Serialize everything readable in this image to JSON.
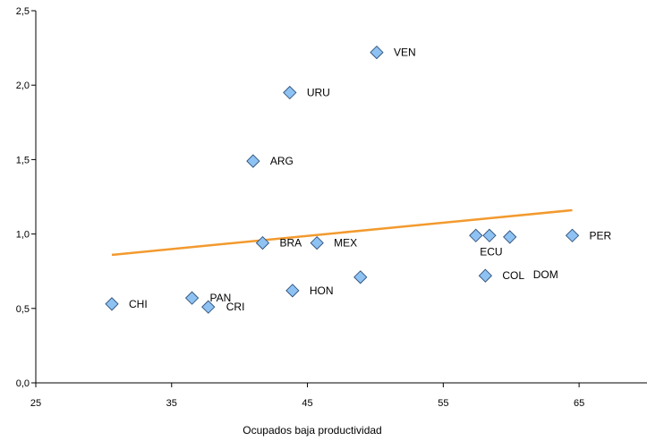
{
  "chart_data": {
    "type": "scatter",
    "title": "",
    "xlabel": "Ocupados  baja productividad",
    "ylabel": "",
    "xlim": [
      25,
      70
    ],
    "ylim": [
      0,
      2.5
    ],
    "xticks": [
      {
        "value": 25,
        "label": "25"
      },
      {
        "value": 35,
        "label": "35"
      },
      {
        "value": 45,
        "label": "45"
      },
      {
        "value": 55,
        "label": "55"
      },
      {
        "value": 65,
        "label": "65"
      }
    ],
    "yticks": [
      {
        "value": 0,
        "label": "0,0"
      },
      {
        "value": 0.5,
        "label": "0,5"
      },
      {
        "value": 1.0,
        "label": "1,0"
      },
      {
        "value": 1.5,
        "label": "1,5"
      },
      {
        "value": 2.0,
        "label": "2,0"
      },
      {
        "value": 2.5,
        "label": "2,5"
      }
    ],
    "grid": false,
    "legend": "none",
    "points": [
      {
        "label": "CHI",
        "x": 30.6,
        "y": 0.53,
        "label_pos": "right"
      },
      {
        "label": "PAN",
        "x": 36.5,
        "y": 0.57,
        "label_pos": "right-tight"
      },
      {
        "label": "CRI",
        "x": 37.7,
        "y": 0.51,
        "label_pos": "right-tight"
      },
      {
        "label": "ARG",
        "x": 41.0,
        "y": 1.49,
        "label_pos": "right"
      },
      {
        "label": "BRA",
        "x": 41.7,
        "y": 0.94,
        "label_pos": "right"
      },
      {
        "label": "URU",
        "x": 43.7,
        "y": 1.95,
        "label_pos": "right"
      },
      {
        "label": "HON",
        "x": 43.9,
        "y": 0.62,
        "label_pos": "right"
      },
      {
        "label": "MEX",
        "x": 45.7,
        "y": 0.94,
        "label_pos": "right"
      },
      {
        "label": "",
        "x": 48.9,
        "y": 0.71,
        "label_pos": "none"
      },
      {
        "label": "VEN",
        "x": 50.1,
        "y": 2.22,
        "label_pos": "right"
      },
      {
        "label": "",
        "x": 57.4,
        "y": 0.99,
        "label_pos": "none"
      },
      {
        "label": "ECU",
        "x": 58.4,
        "y": 0.99,
        "label_pos": "below"
      },
      {
        "label": "COL",
        "x": 58.1,
        "y": 0.72,
        "label_pos": "right"
      },
      {
        "label": "DOM",
        "x": 59.9,
        "y": 0.98,
        "label_pos": "below-right"
      },
      {
        "label": "PER",
        "x": 64.5,
        "y": 0.99,
        "label_pos": "right"
      }
    ],
    "trendline": {
      "color": "#f29a2e",
      "x": [
        30.6,
        64.5
      ],
      "y": [
        0.86,
        1.16
      ]
    },
    "marker_color": "#8ec2f2"
  }
}
